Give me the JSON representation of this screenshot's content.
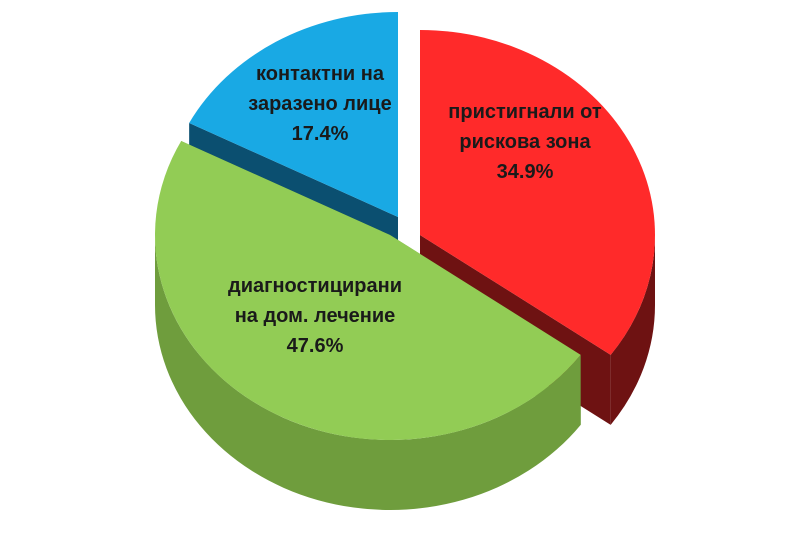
{
  "chart_data": {
    "type": "pie",
    "style": "3d-exploded",
    "slices": [
      {
        "id": "risk-zone",
        "label_lines": [
          "пристигнали от",
          "рискова зона"
        ],
        "value": 34.9,
        "value_label": "34.9%",
        "color_top": "#ff2a2a",
        "color_side": "#6e1212"
      },
      {
        "id": "home-treatment",
        "label_lines": [
          "диагностицирани",
          "на дом. лечение"
        ],
        "value": 47.6,
        "value_label": "47.6%",
        "color_top": "#92cc55",
        "color_side": "#6f9d3d"
      },
      {
        "id": "contacts",
        "label_lines": [
          "контактни на",
          "заразено лице"
        ],
        "value": 17.4,
        "value_label": "17.4%",
        "color_top": "#19a9e4",
        "color_side": "#0b4f70"
      }
    ],
    "legend": "none"
  }
}
